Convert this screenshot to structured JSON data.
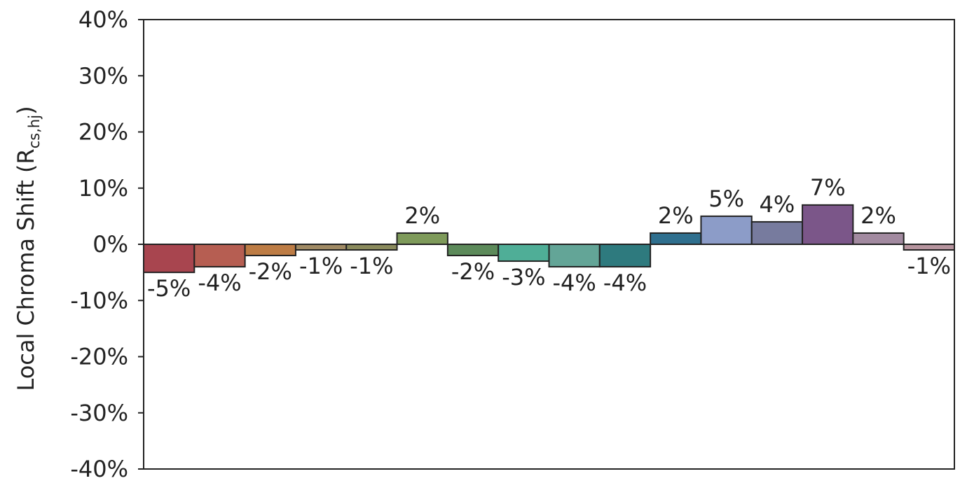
{
  "chart_data": {
    "type": "bar",
    "title": "",
    "xlabel": "",
    "ylabel": "Local Chroma Shift (R",
    "ylabel_subscript": "cs,hj",
    "ylabel_close": ")",
    "ylim": [
      -40,
      40
    ],
    "yticks": [
      "40%",
      "30%",
      "20%",
      "10%",
      "0%",
      "-10%",
      "-20%",
      "-30%",
      "-40%"
    ],
    "ytick_values": [
      40,
      30,
      20,
      10,
      0,
      -10,
      -20,
      -30,
      -40
    ],
    "grid": false,
    "legend": "none",
    "values": [
      -5,
      -4,
      -2,
      -1,
      -1,
      2,
      -2,
      -3,
      -4,
      -4,
      2,
      5,
      4,
      7,
      2,
      -1
    ],
    "labels": [
      "-5%",
      "-4%",
      "-2%",
      "-1%",
      "-1%",
      "2%",
      "-2%",
      "-3%",
      "-4%",
      "-4%",
      "2%",
      "5%",
      "4%",
      "7%",
      "2%",
      "-1%"
    ],
    "colors": [
      "#a8454f",
      "#b65e52",
      "#bd7c45",
      "#a08a64",
      "#8a8a5c",
      "#7e9a5a",
      "#5c8a5a",
      "#4fae97",
      "#63a597",
      "#2e7a7e",
      "#2f6f8e",
      "#8c9cc8",
      "#777b9e",
      "#7b5689",
      "#a28aa0",
      "#b6949e"
    ]
  }
}
